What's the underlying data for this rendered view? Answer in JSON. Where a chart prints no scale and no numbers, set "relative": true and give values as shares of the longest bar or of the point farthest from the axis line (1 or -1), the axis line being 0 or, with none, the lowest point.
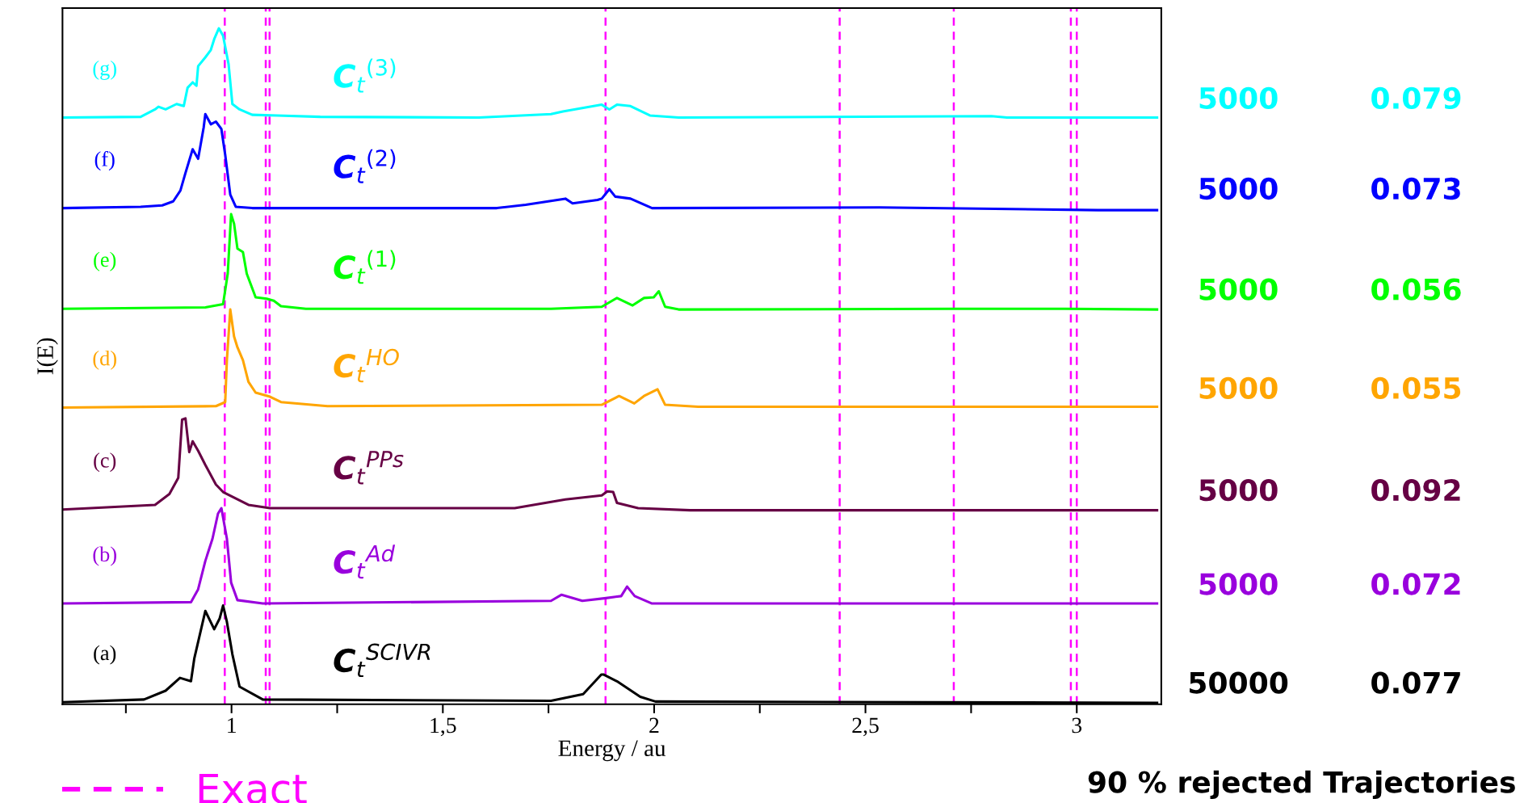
{
  "chart_data": {
    "type": "line",
    "relative": true,
    "xlabel": "Energy / au",
    "ylabel": "I(E)",
    "xlim": [
      0.6,
      3.2
    ],
    "xticks": [
      {
        "value": 0.75,
        "label": null
      },
      1,
      {
        "value": 1.25,
        "label": null
      },
      {
        "value": 1.5,
        "label": "1,5"
      },
      {
        "value": 1.75,
        "label": null
      },
      2,
      {
        "value": 2.25,
        "label": null
      },
      {
        "value": 2.5,
        "label": "2,5"
      },
      {
        "value": 2.75,
        "label": null
      },
      3
    ],
    "tick_labels": "x",
    "grid": false,
    "legend": "bottom left",
    "line_style": "solid",
    "marker": "none",
    "series": [
      {
        "name": "(a)",
        "color": "#000000",
        "x": [
          0.6,
          0.793,
          0.844,
          0.878,
          0.904,
          0.912,
          0.938,
          0.959,
          0.972,
          0.98,
          0.989,
          1.002,
          1.019,
          1.074,
          1.756,
          1.832,
          1.875,
          1.88,
          1.912,
          1.967,
          2.003,
          3.19
        ],
        "values": [
          0.003,
          0.007,
          0.02,
          0.039,
          0.034,
          0.068,
          0.138,
          0.111,
          0.127,
          0.146,
          0.122,
          0.074,
          0.026,
          0.007,
          0.005,
          0.015,
          0.044,
          0.044,
          0.034,
          0.011,
          0.004,
          0.002
        ]
      },
      {
        "name": "(b)",
        "color": "#9900dd",
        "x": [
          0.6,
          0.904,
          0.921,
          0.938,
          0.955,
          0.968,
          0.976,
          0.989,
          0.999,
          1.014,
          1.074,
          1.756,
          1.781,
          1.83,
          1.886,
          1.922,
          1.936,
          1.954,
          1.995,
          3.19
        ],
        "values": [
          0.149,
          0.151,
          0.17,
          0.212,
          0.245,
          0.282,
          0.29,
          0.245,
          0.18,
          0.154,
          0.149,
          0.153,
          0.162,
          0.153,
          0.157,
          0.16,
          0.174,
          0.16,
          0.149,
          0.149
        ]
      },
      {
        "name": "(c)",
        "color": "#660044",
        "x": [
          0.6,
          0.819,
          0.853,
          0.874,
          0.883,
          0.891,
          0.9,
          0.908,
          0.921,
          0.938,
          0.963,
          0.98,
          1.04,
          1.091,
          1.67,
          1.79,
          1.876,
          1.889,
          1.903,
          1.912,
          1.962,
          2.085,
          3.19
        ],
        "values": [
          0.288,
          0.295,
          0.311,
          0.335,
          0.421,
          0.423,
          0.373,
          0.389,
          0.375,
          0.354,
          0.325,
          0.314,
          0.295,
          0.29,
          0.29,
          0.303,
          0.309,
          0.315,
          0.314,
          0.298,
          0.29,
          0.287,
          0.287
        ]
      },
      {
        "name": "(d)",
        "color": "#ffa500",
        "x": [
          0.6,
          0.963,
          0.985,
          0.989,
          0.997,
          1.006,
          1.014,
          1.027,
          1.04,
          1.057,
          1.091,
          1.117,
          1.227,
          1.876,
          1.917,
          1.953,
          1.976,
          2.008,
          2.026,
          2.104,
          3.19
        ],
        "values": [
          0.439,
          0.441,
          0.447,
          0.509,
          0.584,
          0.544,
          0.528,
          0.509,
          0.477,
          0.461,
          0.455,
          0.447,
          0.441,
          0.443,
          0.456,
          0.445,
          0.456,
          0.466,
          0.443,
          0.44,
          0.44
        ]
      },
      {
        "name": "(e)",
        "color": "#00ff00",
        "x": [
          0.6,
          0.938,
          0.98,
          0.991,
          0.999,
          1.006,
          1.014,
          1.027,
          1.036,
          1.057,
          1.083,
          1.1,
          1.117,
          1.176,
          1.756,
          1.876,
          1.912,
          1.949,
          1.976,
          1.999,
          2.011,
          2.026,
          2.058,
          2.707,
          2.972,
          3.19
        ],
        "values": [
          0.585,
          0.587,
          0.592,
          0.637,
          0.725,
          0.711,
          0.674,
          0.669,
          0.637,
          0.602,
          0.6,
          0.597,
          0.589,
          0.585,
          0.585,
          0.588,
          0.601,
          0.59,
          0.601,
          0.602,
          0.611,
          0.588,
          0.584,
          0.585,
          0.585,
          0.584
        ]
      },
      {
        "name": "(f)",
        "color": "#0000ff",
        "x": [
          0.6,
          0.785,
          0.836,
          0.862,
          0.879,
          0.891,
          0.908,
          0.921,
          0.934,
          0.938,
          0.951,
          0.963,
          0.976,
          0.985,
          0.997,
          1.01,
          1.049,
          1.628,
          1.696,
          1.79,
          1.807,
          1.866,
          1.876,
          1.894,
          1.908,
          1.944,
          1.995,
          2.533,
          3.05,
          3.19
        ],
        "values": [
          0.734,
          0.736,
          0.738,
          0.744,
          0.76,
          0.786,
          0.821,
          0.807,
          0.853,
          0.873,
          0.858,
          0.862,
          0.851,
          0.813,
          0.754,
          0.736,
          0.734,
          0.734,
          0.739,
          0.748,
          0.741,
          0.746,
          0.748,
          0.762,
          0.751,
          0.748,
          0.734,
          0.735,
          0.731,
          0.731
        ]
      },
      {
        "name": "(g)",
        "color": "#00ffff",
        "x": [
          0.6,
          0.785,
          0.819,
          0.827,
          0.844,
          0.87,
          0.887,
          0.896,
          0.908,
          0.917,
          0.921,
          0.938,
          0.951,
          0.959,
          0.97,
          0.98,
          0.993,
          1.002,
          1.019,
          1.049,
          1.108,
          1.21,
          1.585,
          1.756,
          1.784,
          1.876,
          1.894,
          1.912,
          1.944,
          1.99,
          2.058,
          2.798,
          2.835,
          3.19
        ],
        "values": [
          0.868,
          0.869,
          0.88,
          0.884,
          0.88,
          0.888,
          0.885,
          0.912,
          0.92,
          0.915,
          0.944,
          0.957,
          0.968,
          0.984,
          1.0,
          0.989,
          0.947,
          0.888,
          0.88,
          0.872,
          0.871,
          0.869,
          0.868,
          0.873,
          0.877,
          0.887,
          0.88,
          0.887,
          0.885,
          0.871,
          0.868,
          0.87,
          0.868,
          0.868
        ]
      }
    ],
    "ref_lines": [
      {
        "axis": "x",
        "value": 0.984,
        "label": "Exact",
        "color": "#ff00ff",
        "line_style": "dashed"
      },
      {
        "axis": "x",
        "value": 1.081,
        "color": "#ff00ff",
        "line_style": "dashed"
      },
      {
        "axis": "x",
        "value": 1.09,
        "color": "#ff00ff",
        "line_style": "dashed"
      },
      {
        "axis": "x",
        "value": 1.885,
        "color": "#ff00ff",
        "line_style": "dashed"
      },
      {
        "axis": "x",
        "value": 2.439,
        "color": "#ff00ff",
        "line_style": "dashed"
      },
      {
        "axis": "x",
        "value": 2.709,
        "color": "#ff00ff",
        "line_style": "dashed"
      },
      {
        "axis": "x",
        "value": 2.986,
        "color": "#ff00ff",
        "line_style": "dashed"
      },
      {
        "axis": "x",
        "value": 3.0,
        "color": "#ff00ff",
        "line_style": "dashed"
      }
    ],
    "annotations": [
      "C$_{t}$$^{SCIVR}$",
      "50000",
      "0.077",
      "C$_{t}$$^{Ad}$",
      "5000",
      "0.072",
      "C$_{t}$$^{PPs}$",
      "5000",
      "0.092",
      "C$_{t}$$^{HO}$",
      "5000",
      "0.055",
      "C$_{t}$$^{(1)}$",
      "5000",
      "0.056",
      "C$_{t}$$^{(2)}$",
      "5000",
      "0.073",
      "C$_{t}$$^{(3)}$",
      "5000",
      "0.079",
      "90 % rejected Trajectories"
    ]
  }
}
